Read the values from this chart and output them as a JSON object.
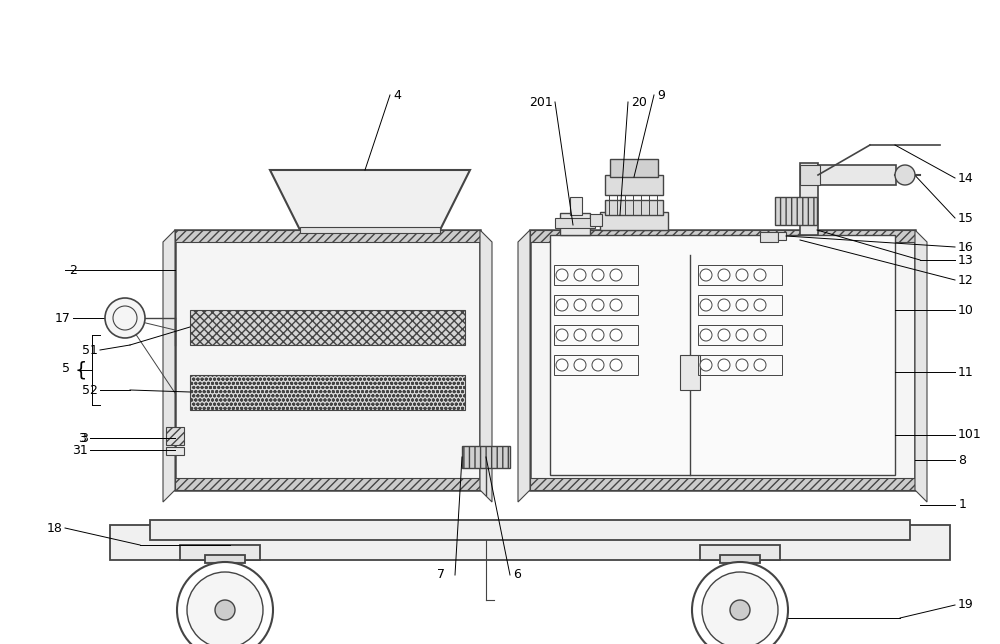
{
  "bg_color": "#ffffff",
  "lc": "#444444",
  "lc_thin": "#666666",
  "fill_box": "#f8f8f8",
  "fill_hatch": "#e0e0e0",
  "fill_gray": "#d8d8d8",
  "fill_light": "#eeeeee"
}
